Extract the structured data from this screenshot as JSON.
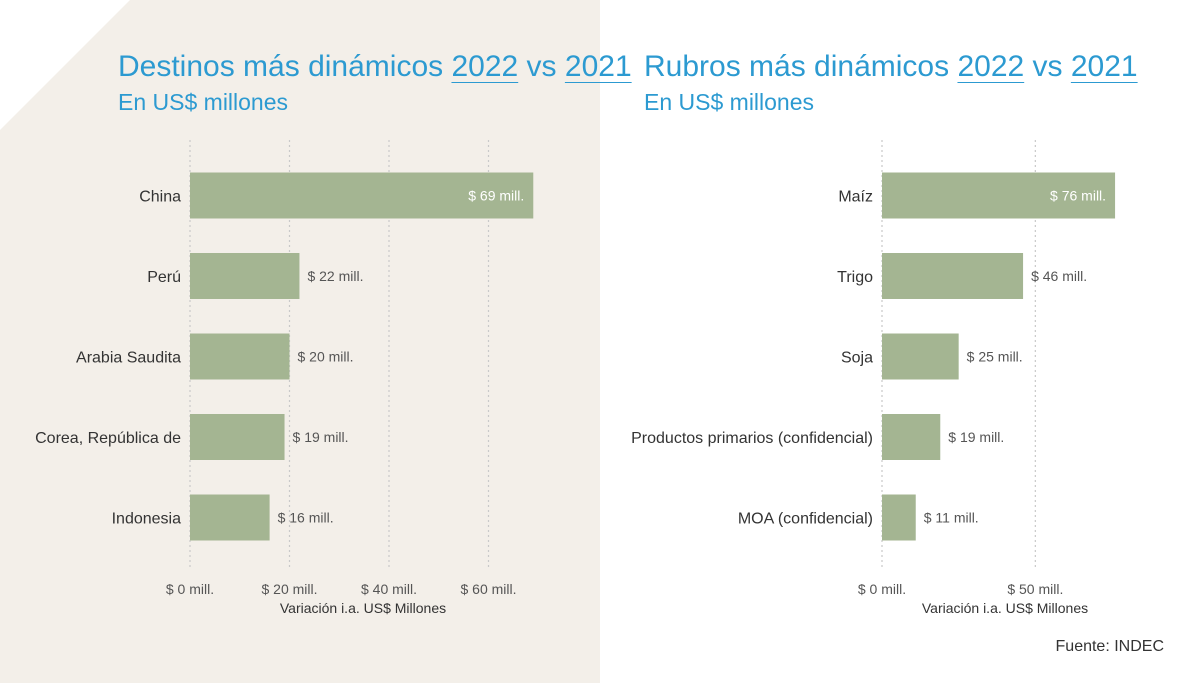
{
  "colors": {
    "bar": "#a4b592",
    "title": "#2c9ad1",
    "text": "#333333",
    "grid": "#c9c9c9",
    "left_background": "#f3efe9"
  },
  "left": {
    "title_parts": [
      "Destinos más dinámicos ",
      "2022",
      " vs ",
      "2021"
    ],
    "subtitle": "En US$ millones"
  },
  "right": {
    "title_parts": [
      "Rubros más dinámicos ",
      "2022",
      " vs ",
      "2021"
    ],
    "subtitle": "En US$ millones"
  },
  "source": "Fuente: INDEC",
  "chart_data": [
    {
      "type": "bar",
      "orientation": "horizontal",
      "categories": [
        "China",
        "Perú",
        "Arabia Saudita",
        "Corea, República de",
        "Indonesia"
      ],
      "values": [
        69,
        22,
        20,
        19,
        16
      ],
      "data_labels": [
        "$ 69 mill.",
        "$ 22 mill.",
        "$ 20 mill.",
        "$ 19 mill.",
        "$ 16 mill."
      ],
      "xticks": [
        0,
        20,
        40,
        60
      ],
      "xtick_labels": [
        "$ 0 mill.",
        "$ 20 mill.",
        "$ 40 mill.",
        "$ 60 mill."
      ],
      "xlim": [
        0,
        80
      ],
      "xlabel": "Variación i.a. US$ Millones",
      "title": "Destinos más dinámicos 2022 vs 2021",
      "subtitle": "En US$ millones",
      "grid": true
    },
    {
      "type": "bar",
      "orientation": "horizontal",
      "categories": [
        "Maíz",
        "Trigo",
        "Soja",
        "Productos primarios (confidencial)",
        "MOA (confidencial)"
      ],
      "values": [
        76,
        46,
        25,
        19,
        11
      ],
      "data_labels": [
        "$ 76 mill.",
        "$ 46 mill.",
        "$ 25 mill.",
        "$ 19 mill.",
        "$ 11 mill."
      ],
      "xticks": [
        0,
        50
      ],
      "xtick_labels": [
        "$ 0 mill.",
        "$ 50 mill."
      ],
      "xlim": [
        0,
        90
      ],
      "xlabel": "Variación i.a. US$ Millones",
      "title": "Rubros más dinámicos 2022 vs 2021",
      "subtitle": "En US$ millones",
      "grid": true
    }
  ]
}
